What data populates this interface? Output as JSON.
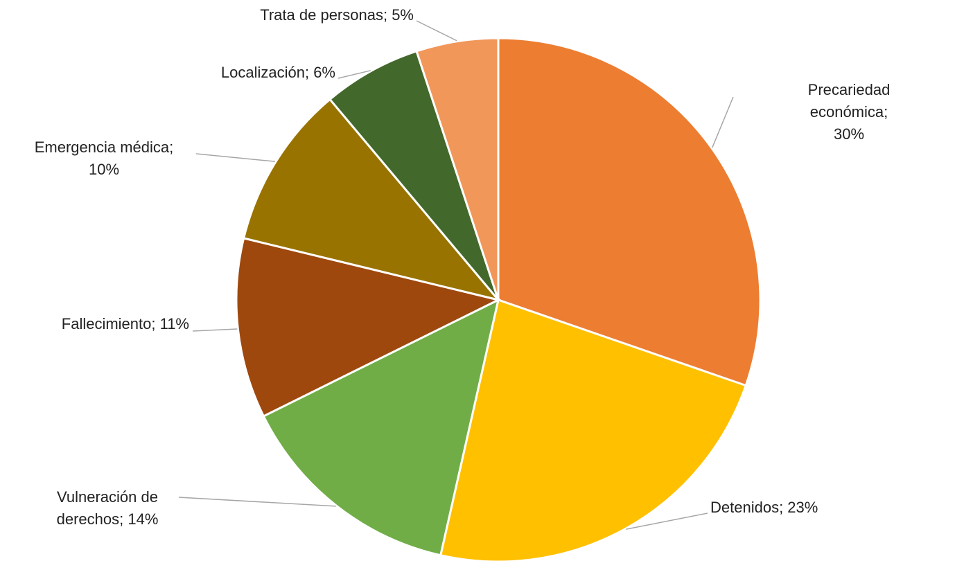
{
  "chart_data": {
    "type": "pie",
    "values": [
      30,
      23,
      14,
      11,
      10,
      6,
      5
    ],
    "value_labels": [
      "Precariedad económica;\n30%",
      "Detenidos; 23%",
      "Vulneración de\nderechos; 14%",
      "Fallecimiento; 11%",
      "Emergencia médica;\n10%",
      "Localización; 6%",
      "Trata de personas; 5%"
    ],
    "colors": [
      "#ED7D31",
      "#FFC000",
      "#70AD47",
      "#9E480E",
      "#997300",
      "#43682B",
      "#F1975A"
    ]
  }
}
